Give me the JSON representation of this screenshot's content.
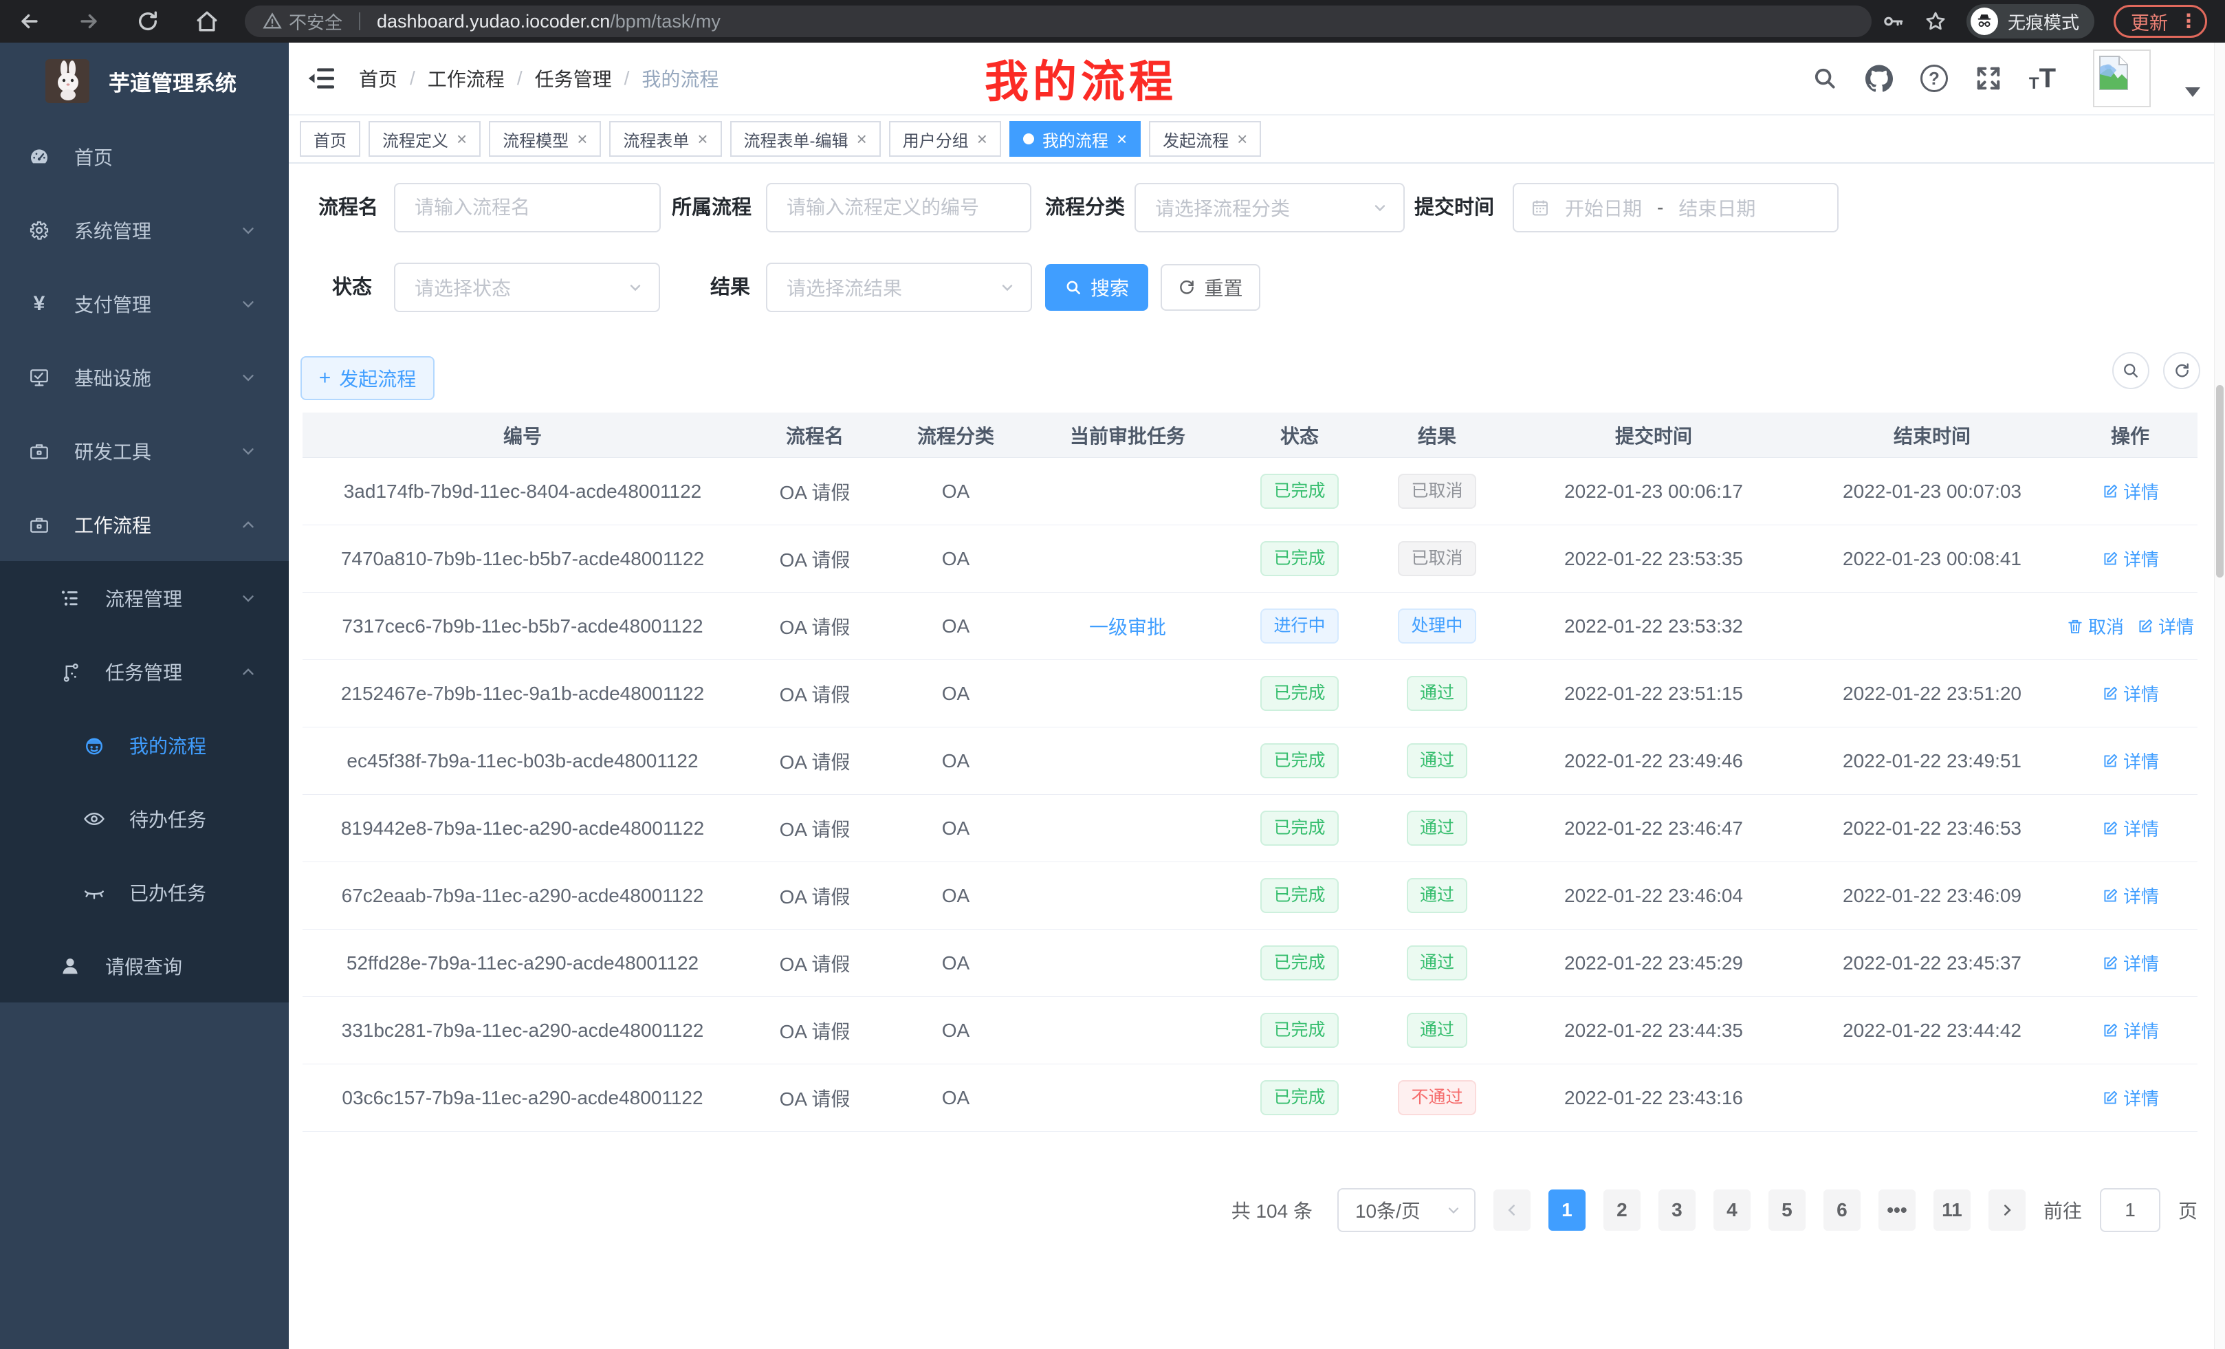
{
  "chrome": {
    "security_label": "不安全",
    "url_host": "dashboard.yudao.iocoder.cn",
    "url_path": "/bpm/task/my",
    "incognito_label": "无痕模式",
    "update_label": "更新"
  },
  "colors": {
    "accent": "#409eff",
    "sidebar_bg": "#304156",
    "submenu_bg": "#1f2d3d",
    "success": "#35bd6d",
    "info": "#909399",
    "danger": "#f56c6c"
  },
  "sidebar": {
    "app_title": "芋道管理系统",
    "menu": [
      {
        "label": "首页",
        "icon": "dashboard-icon",
        "level": 1
      },
      {
        "label": "系统管理",
        "icon": "gear-icon",
        "level": 1,
        "chevron": "down"
      },
      {
        "label": "支付管理",
        "icon": "yen-icon",
        "level": 1,
        "chevron": "down"
      },
      {
        "label": "基础设施",
        "icon": "monitor-icon",
        "level": 1,
        "chevron": "down"
      },
      {
        "label": "研发工具",
        "icon": "toolbox-icon",
        "level": 1,
        "chevron": "down"
      },
      {
        "label": "工作流程",
        "icon": "workflow-icon",
        "level": 1,
        "chevron": "up",
        "expanded": true
      },
      {
        "label": "流程管理",
        "icon": "tree-list-icon",
        "level": 2,
        "chevron": "down",
        "dark": true
      },
      {
        "label": "任务管理",
        "icon": "relation-icon",
        "level": 2,
        "chevron": "up",
        "dark": true
      },
      {
        "label": "我的流程",
        "icon": "face-icon",
        "level": 3,
        "dark": true,
        "active": true
      },
      {
        "label": "待办任务",
        "icon": "eye-open-icon",
        "level": 3,
        "dark": true
      },
      {
        "label": "已办任务",
        "icon": "eye-closed-icon",
        "level": 3,
        "dark": true
      },
      {
        "label": "请假查询",
        "icon": "user-icon",
        "level": 2,
        "dark": true
      }
    ]
  },
  "header": {
    "breadcrumb": [
      "首页",
      "工作流程",
      "任务管理",
      "我的流程"
    ],
    "annotation": "我的流程"
  },
  "tabs": [
    {
      "label": "首页",
      "closable": false,
      "active": false
    },
    {
      "label": "流程定义",
      "closable": true,
      "active": false
    },
    {
      "label": "流程模型",
      "closable": true,
      "active": false
    },
    {
      "label": "流程表单",
      "closable": true,
      "active": false
    },
    {
      "label": "流程表单-编辑",
      "closable": true,
      "active": false
    },
    {
      "label": "用户分组",
      "closable": true,
      "active": false
    },
    {
      "label": "我的流程",
      "closable": true,
      "active": true
    },
    {
      "label": "发起流程",
      "closable": true,
      "active": false
    }
  ],
  "filters": {
    "name_label": "流程名",
    "name_placeholder": "请输入流程名",
    "definition_label": "所属流程",
    "definition_placeholder": "请输入流程定义的编号",
    "category_label": "流程分类",
    "category_placeholder": "请选择流程分类",
    "submit_time_label": "提交时间",
    "start_date_placeholder": "开始日期",
    "date_separator": "-",
    "end_date_placeholder": "结束日期",
    "status_label": "状态",
    "status_placeholder": "请选择状态",
    "result_label": "结果",
    "result_placeholder": "请选择流结果",
    "search_button": "搜索",
    "reset_button": "重置"
  },
  "toolbar": {
    "create_button": "发起流程"
  },
  "table": {
    "columns": [
      "编号",
      "流程名",
      "流程分类",
      "当前审批任务",
      "状态",
      "结果",
      "提交时间",
      "结束时间",
      "操作"
    ],
    "rows": [
      {
        "id": "3ad174fb-7b9d-11ec-8404-acde48001122",
        "name": "OA 请假",
        "category": "OA",
        "task": "",
        "status": {
          "text": "已完成",
          "type": "success"
        },
        "result": {
          "text": "已取消",
          "type": "info"
        },
        "submit_time": "2022-01-23 00:06:17",
        "end_time": "2022-01-23 00:07:03",
        "actions": [
          "详情"
        ]
      },
      {
        "id": "7470a810-7b9b-11ec-b5b7-acde48001122",
        "name": "OA 请假",
        "category": "OA",
        "task": "",
        "status": {
          "text": "已完成",
          "type": "success"
        },
        "result": {
          "text": "已取消",
          "type": "info"
        },
        "submit_time": "2022-01-22 23:53:35",
        "end_time": "2022-01-23 00:08:41",
        "actions": [
          "详情"
        ]
      },
      {
        "id": "7317cec6-7b9b-11ec-b5b7-acde48001122",
        "name": "OA 请假",
        "category": "OA",
        "task": "一级审批",
        "status": {
          "text": "进行中",
          "type": "primary"
        },
        "result": {
          "text": "处理中",
          "type": "primary"
        },
        "submit_time": "2022-01-22 23:53:32",
        "end_time": "",
        "actions": [
          "取消",
          "详情"
        ]
      },
      {
        "id": "2152467e-7b9b-11ec-9a1b-acde48001122",
        "name": "OA 请假",
        "category": "OA",
        "task": "",
        "status": {
          "text": "已完成",
          "type": "success"
        },
        "result": {
          "text": "通过",
          "type": "success"
        },
        "submit_time": "2022-01-22 23:51:15",
        "end_time": "2022-01-22 23:51:20",
        "actions": [
          "详情"
        ]
      },
      {
        "id": "ec45f38f-7b9a-11ec-b03b-acde48001122",
        "name": "OA 请假",
        "category": "OA",
        "task": "",
        "status": {
          "text": "已完成",
          "type": "success"
        },
        "result": {
          "text": "通过",
          "type": "success"
        },
        "submit_time": "2022-01-22 23:49:46",
        "end_time": "2022-01-22 23:49:51",
        "actions": [
          "详情"
        ]
      },
      {
        "id": "819442e8-7b9a-11ec-a290-acde48001122",
        "name": "OA 请假",
        "category": "OA",
        "task": "",
        "status": {
          "text": "已完成",
          "type": "success"
        },
        "result": {
          "text": "通过",
          "type": "success"
        },
        "submit_time": "2022-01-22 23:46:47",
        "end_time": "2022-01-22 23:46:53",
        "actions": [
          "详情"
        ]
      },
      {
        "id": "67c2eaab-7b9a-11ec-a290-acde48001122",
        "name": "OA 请假",
        "category": "OA",
        "task": "",
        "status": {
          "text": "已完成",
          "type": "success"
        },
        "result": {
          "text": "通过",
          "type": "success"
        },
        "submit_time": "2022-01-22 23:46:04",
        "end_time": "2022-01-22 23:46:09",
        "actions": [
          "详情"
        ]
      },
      {
        "id": "52ffd28e-7b9a-11ec-a290-acde48001122",
        "name": "OA 请假",
        "category": "OA",
        "task": "",
        "status": {
          "text": "已完成",
          "type": "success"
        },
        "result": {
          "text": "通过",
          "type": "success"
        },
        "submit_time": "2022-01-22 23:45:29",
        "end_time": "2022-01-22 23:45:37",
        "actions": [
          "详情"
        ]
      },
      {
        "id": "331bc281-7b9a-11ec-a290-acde48001122",
        "name": "OA 请假",
        "category": "OA",
        "task": "",
        "status": {
          "text": "已完成",
          "type": "success"
        },
        "result": {
          "text": "通过",
          "type": "success"
        },
        "submit_time": "2022-01-22 23:44:35",
        "end_time": "2022-01-22 23:44:42",
        "actions": [
          "详情"
        ]
      },
      {
        "id": "03c6c157-7b9a-11ec-a290-acde48001122",
        "name": "OA 请假",
        "category": "OA",
        "task": "",
        "status": {
          "text": "已完成",
          "type": "success"
        },
        "result": {
          "text": "不通过",
          "type": "danger"
        },
        "submit_time": "2022-01-22 23:43:16",
        "end_time": "",
        "actions": [
          "详情"
        ]
      }
    ]
  },
  "pagination": {
    "total_label": "共 104 条",
    "page_size": "10条/页",
    "pages": [
      "1",
      "2",
      "3",
      "4",
      "5",
      "6",
      "•••",
      "11"
    ],
    "active_page": "1",
    "goto_label": "前往",
    "goto_value": "1",
    "goto_suffix": "页"
  }
}
